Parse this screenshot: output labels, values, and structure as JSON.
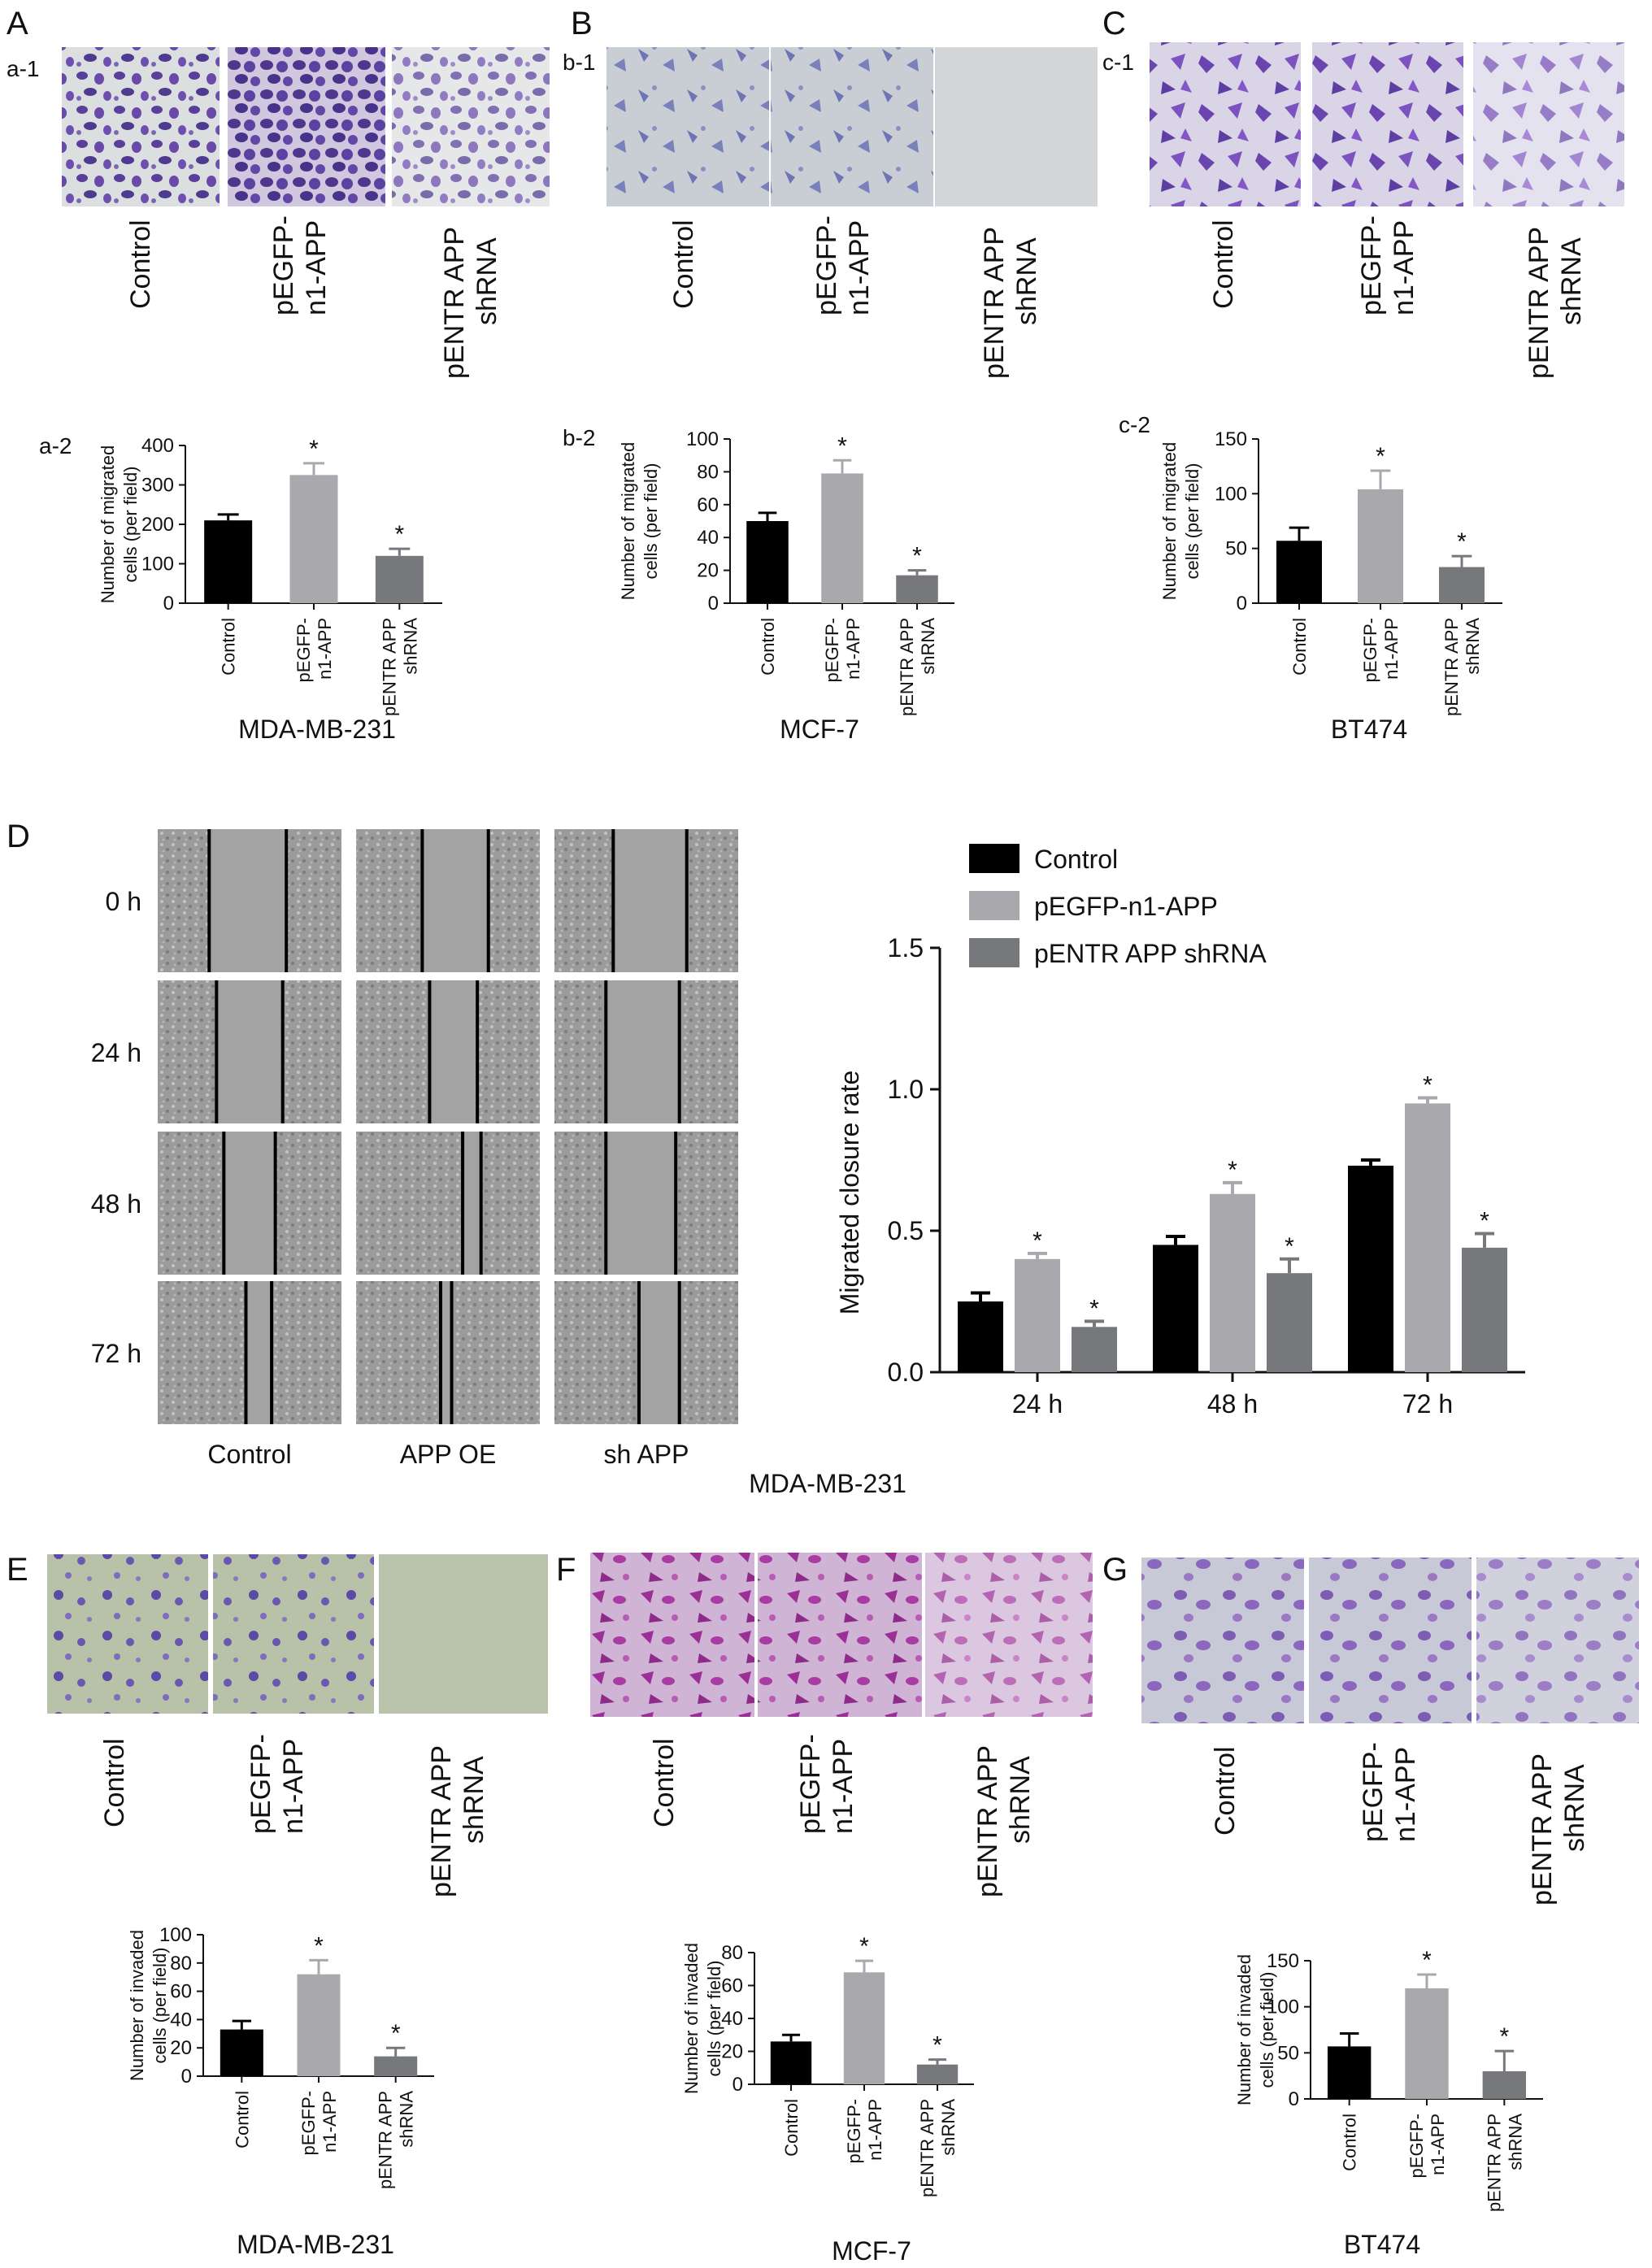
{
  "panels": {
    "A": "A",
    "B": "B",
    "C": "C",
    "D": "D",
    "E": "E",
    "F": "F",
    "G": "G",
    "a1": "a-1",
    "b1": "b-1",
    "c1": "c-1",
    "a2": "a-2",
    "b2": "b-2",
    "c2": "c-2"
  },
  "groups": {
    "control": "Control",
    "oe_line1": "pEGFP-",
    "oe_line2": "n1-APP",
    "sh_line1": "pENTR APP",
    "sh_line2": "shRNA"
  },
  "cell_lines": {
    "A": "MDA-MB-231",
    "B": "MCF-7",
    "C": "BT474",
    "D": "MDA-MB-231",
    "E": "MDA-MB-231",
    "F": "MCF-7",
    "G": "BT474"
  },
  "migration_ylabel": [
    "Number of migrated",
    "cells (per field)"
  ],
  "invasion_ylabel": [
    "Number of invaded",
    "cells (per field)"
  ],
  "wound": {
    "times": [
      "0 h",
      "24 h",
      "48 h",
      "72 h"
    ],
    "columns": [
      "Control",
      "APP OE",
      "sh APP"
    ]
  },
  "colors": {
    "control": "#000000",
    "oe": "#a8a8ad",
    "sh": "#77787b",
    "stain_purple": "#5a3f9a",
    "stain_magenta": "#a23da0",
    "phase_gray": "#9a9a9a"
  },
  "chart_data": [
    {
      "id": "a-2",
      "type": "bar",
      "categories": [
        "Control",
        "pEGFP-n1-APP",
        "pENTR APP shRNA"
      ],
      "values": [
        210,
        325,
        120
      ],
      "errors": [
        15,
        30,
        18
      ],
      "significant": [
        false,
        true,
        true
      ],
      "ylabel": "Number of migrated cells (per field)",
      "ylim": [
        0,
        400
      ],
      "yticks": [
        0,
        100,
        200,
        300,
        400
      ],
      "cell_line": "MDA-MB-231"
    },
    {
      "id": "b-2",
      "type": "bar",
      "categories": [
        "Control",
        "pEGFP-n1-APP",
        "pENTR APP shRNA"
      ],
      "values": [
        50,
        79,
        17
      ],
      "errors": [
        5,
        8,
        3
      ],
      "significant": [
        false,
        true,
        true
      ],
      "ylabel": "Number of migrated cells (per field)",
      "ylim": [
        0,
        100
      ],
      "yticks": [
        0,
        20,
        40,
        60,
        80,
        100
      ],
      "cell_line": "MCF-7"
    },
    {
      "id": "c-2",
      "type": "bar",
      "categories": [
        "Control",
        "pEGFP-n1-APP",
        "pENTR APP shRNA"
      ],
      "values": [
        57,
        104,
        33
      ],
      "errors": [
        12,
        17,
        10
      ],
      "significant": [
        false,
        true,
        true
      ],
      "ylabel": "Number of migrated cells (per field)",
      "ylim": [
        0,
        150
      ],
      "yticks": [
        0,
        50,
        100,
        150
      ],
      "cell_line": "BT474"
    },
    {
      "id": "D",
      "type": "bar",
      "categories": [
        "24 h",
        "48 h",
        "72 h"
      ],
      "series": [
        {
          "name": "Control",
          "values": [
            0.25,
            0.45,
            0.73
          ],
          "errors": [
            0.03,
            0.03,
            0.02
          ],
          "significant": [
            false,
            false,
            false
          ]
        },
        {
          "name": "pEGFP-n1-APP",
          "values": [
            0.4,
            0.63,
            0.95
          ],
          "errors": [
            0.02,
            0.04,
            0.02
          ],
          "significant": [
            true,
            true,
            true
          ]
        },
        {
          "name": "pENTR APP shRNA",
          "values": [
            0.16,
            0.35,
            0.44
          ],
          "errors": [
            0.02,
            0.05,
            0.05
          ],
          "significant": [
            true,
            true,
            true
          ]
        }
      ],
      "ylabel": "Migrated closure rate",
      "ylim": [
        0,
        1.5
      ],
      "yticks": [
        "0.0",
        "0.5",
        "1.0",
        "1.5"
      ],
      "legend": "top-left"
    },
    {
      "id": "E",
      "type": "bar",
      "categories": [
        "Control",
        "pEGFP-n1-APP",
        "pENTR APP shRNA"
      ],
      "values": [
        33,
        72,
        14
      ],
      "errors": [
        6,
        10,
        6
      ],
      "significant": [
        false,
        true,
        true
      ],
      "ylabel": "Number of invaded cells (per field)",
      "ylim": [
        0,
        100
      ],
      "yticks": [
        0,
        20,
        40,
        60,
        80,
        100
      ],
      "cell_line": "MDA-MB-231"
    },
    {
      "id": "F",
      "type": "bar",
      "categories": [
        "Control",
        "pEGFP-n1-APP",
        "pENTR APP shRNA"
      ],
      "values": [
        26,
        68,
        12
      ],
      "errors": [
        4,
        7,
        3
      ],
      "significant": [
        false,
        true,
        true
      ],
      "ylabel": "Number of invaded cells (per field)",
      "ylim": [
        0,
        80
      ],
      "yticks": [
        0,
        20,
        40,
        60,
        80
      ],
      "cell_line": "MCF-7"
    },
    {
      "id": "G",
      "type": "bar",
      "categories": [
        "Control",
        "pEGFP-n1-APP",
        "pENTR APP shRNA"
      ],
      "values": [
        57,
        120,
        30
      ],
      "errors": [
        14,
        15,
        22
      ],
      "significant": [
        false,
        true,
        true
      ],
      "ylabel": "Number of invaded cells (per field)",
      "ylim": [
        0,
        150
      ],
      "yticks": [
        0,
        50,
        100,
        150
      ],
      "cell_line": "BT474"
    }
  ]
}
